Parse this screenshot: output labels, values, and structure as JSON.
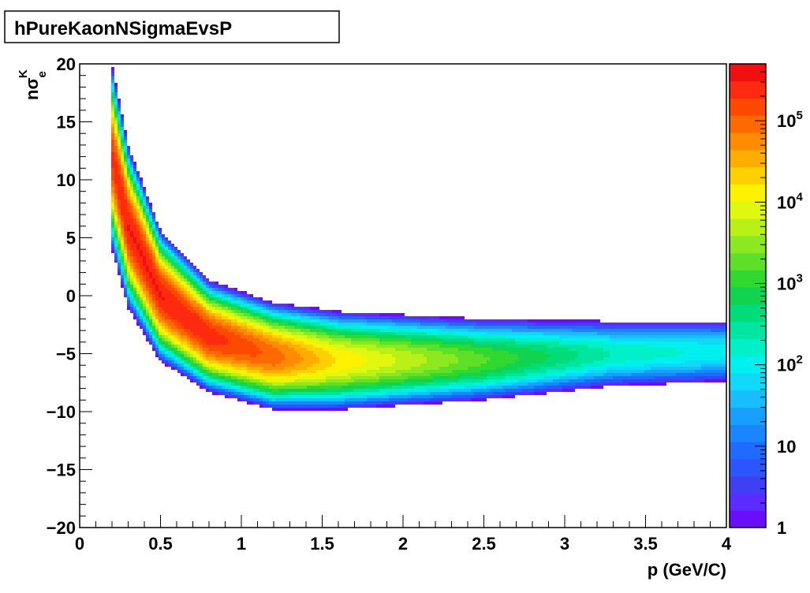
{
  "chart_data": {
    "type": "heatmap",
    "title": "hPureKaonNSigmaEvsP",
    "xlabel": "p (GeV/C)",
    "ylabel": "nσ_e^K",
    "ylabel_parts": {
      "base": "n",
      "sigma": "σ",
      "sub": "e",
      "sup": "K"
    },
    "xlim": [
      0,
      4
    ],
    "ylim": [
      -20,
      20
    ],
    "x_ticks": [
      {
        "value": 0,
        "label": "0"
      },
      {
        "value": 0.5,
        "label": "0.5"
      },
      {
        "value": 1,
        "label": "1"
      },
      {
        "value": 1.5,
        "label": "1.5"
      },
      {
        "value": 2,
        "label": "2"
      },
      {
        "value": 2.5,
        "label": "2.5"
      },
      {
        "value": 3,
        "label": "3"
      },
      {
        "value": 3.5,
        "label": "3.5"
      },
      {
        "value": 4,
        "label": "4"
      }
    ],
    "y_ticks": [
      {
        "value": 20,
        "label": "20"
      },
      {
        "value": 15,
        "label": "15"
      },
      {
        "value": 10,
        "label": "10"
      },
      {
        "value": 5,
        "label": "5"
      },
      {
        "value": 0,
        "label": "0"
      },
      {
        "value": -5,
        "label": "−5"
      },
      {
        "value": -10,
        "label": "−10"
      },
      {
        "value": -15,
        "label": "−15"
      },
      {
        "value": -20,
        "label": "−20"
      }
    ],
    "z_scale": "log",
    "z_range": [
      1,
      500000
    ],
    "z_labels": [
      {
        "value": 1,
        "base": "1",
        "exp": ""
      },
      {
        "value": 10,
        "base": "10",
        "exp": ""
      },
      {
        "value": 100,
        "base": "10",
        "exp": "2"
      },
      {
        "value": 1000,
        "base": "10",
        "exp": "3"
      },
      {
        "value": 10000,
        "base": "10",
        "exp": "4"
      },
      {
        "value": 100000,
        "base": "10",
        "exp": "5"
      }
    ],
    "palette": [
      "#6a0dff",
      "#5b2bff",
      "#3f3ff5",
      "#2d55ff",
      "#1f6bff",
      "#1a85ff",
      "#19a0ff",
      "#18bdff",
      "#10d8f8",
      "#00f0f0",
      "#00f0c8",
      "#00e6a0",
      "#00dc78",
      "#10d450",
      "#30d830",
      "#5ee028",
      "#8ce820",
      "#b8f018",
      "#e0f810",
      "#fff200",
      "#ffd000",
      "#ffae00",
      "#ff8c00",
      "#ff6a00",
      "#ff4800",
      "#ff2a10",
      "#f01010"
    ],
    "band": {
      "description_points": [
        {
          "p": 0.2,
          "center": 12.0,
          "sigma": 3.0,
          "peak_log10z": 5.3
        },
        {
          "p": 0.3,
          "center": 6.0,
          "sigma": 2.6,
          "peak_log10z": 5.5
        },
        {
          "p": 0.5,
          "center": 0.0,
          "sigma": 2.1,
          "peak_log10z": 5.5
        },
        {
          "p": 0.8,
          "center": -3.5,
          "sigma": 1.8,
          "peak_log10z": 5.4
        },
        {
          "p": 1.2,
          "center": -5.2,
          "sigma": 1.8,
          "peak_log10z": 5.0
        },
        {
          "p": 1.6,
          "center": -5.6,
          "sigma": 1.8,
          "peak_log10z": 4.2
        },
        {
          "p": 2.5,
          "center": -5.5,
          "sigma": 1.7,
          "peak_log10z": 3.2
        },
        {
          "p": 3.3,
          "center": -5.0,
          "sigma": 1.6,
          "peak_log10z": 2.3
        },
        {
          "p": 4.0,
          "center": -4.8,
          "sigma": 1.6,
          "peak_log10z": 2.0
        }
      ]
    }
  }
}
